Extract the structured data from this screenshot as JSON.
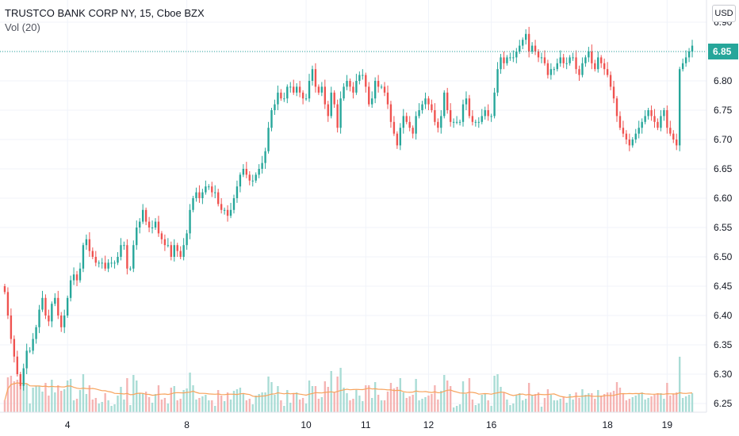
{
  "header": {
    "symbol_line": "TRUSTCO BANK CORP NY, 15, Cboe BZX",
    "indicator": "Vol (20)",
    "currency": "USD"
  },
  "last_price_label": "6.85",
  "colors": {
    "up": "#26a69a",
    "down": "#ef5350",
    "volume_up": "#a9dcd5",
    "volume_down": "#f5b4b3",
    "volume_ma": "#f7a35c",
    "grid": "#f0f3fa",
    "last_price_line": "#26a69a"
  },
  "chart_data": {
    "type": "candlestick",
    "title": "TRUSTCO BANK CORP NY, 15, Cboe BZX",
    "interval": "15",
    "exchange": "Cboe BZX",
    "y_axis": {
      "position": "right",
      "range": [
        6.235,
        6.905
      ],
      "ticks": [
        "6.25",
        "6.30",
        "6.35",
        "6.40",
        "6.45",
        "6.50",
        "6.55",
        "6.60",
        "6.65",
        "6.70",
        "6.75",
        "6.80",
        "6.85",
        "6.90"
      ]
    },
    "x_axis": {
      "ticks": [
        "4",
        "8",
        "10",
        "11",
        "12",
        "16",
        "18",
        "19"
      ],
      "tick_index": [
        20,
        58,
        96,
        115,
        135,
        155,
        192,
        211
      ]
    },
    "last_price": 6.85,
    "grid": true,
    "closes": [
      6.44,
      6.4,
      6.36,
      6.33,
      6.3,
      6.28,
      6.31,
      6.34,
      6.34,
      6.36,
      6.38,
      6.41,
      6.43,
      6.4,
      6.39,
      6.42,
      6.43,
      6.4,
      6.38,
      6.4,
      6.43,
      6.46,
      6.47,
      6.46,
      6.48,
      6.52,
      6.53,
      6.51,
      6.5,
      6.49,
      6.49,
      6.49,
      6.48,
      6.49,
      6.49,
      6.49,
      6.5,
      6.52,
      6.52,
      6.48,
      6.48,
      6.52,
      6.55,
      6.56,
      6.58,
      6.56,
      6.55,
      6.55,
      6.56,
      6.54,
      6.53,
      6.52,
      6.52,
      6.5,
      6.52,
      6.51,
      6.5,
      6.52,
      6.54,
      6.58,
      6.6,
      6.61,
      6.6,
      6.61,
      6.62,
      6.62,
      6.61,
      6.61,
      6.59,
      6.58,
      6.58,
      6.57,
      6.58,
      6.6,
      6.62,
      6.64,
      6.65,
      6.64,
      6.63,
      6.63,
      6.64,
      6.65,
      6.66,
      6.68,
      6.72,
      6.75,
      6.76,
      6.78,
      6.77,
      6.77,
      6.79,
      6.79,
      6.78,
      6.79,
      6.78,
      6.77,
      6.77,
      6.8,
      6.82,
      6.79,
      6.78,
      6.79,
      6.76,
      6.74,
      6.78,
      6.76,
      6.72,
      6.77,
      6.79,
      6.8,
      6.79,
      6.78,
      6.8,
      6.81,
      6.81,
      6.79,
      6.76,
      6.77,
      6.8,
      6.79,
      6.79,
      6.78,
      6.76,
      6.73,
      6.71,
      6.69,
      6.72,
      6.74,
      6.73,
      6.72,
      6.71,
      6.74,
      6.75,
      6.76,
      6.77,
      6.76,
      6.75,
      6.73,
      6.72,
      6.74,
      6.78,
      6.75,
      6.73,
      6.73,
      6.73,
      6.73,
      6.76,
      6.77,
      6.74,
      6.73,
      6.73,
      6.73,
      6.74,
      6.75,
      6.74,
      6.74,
      6.78,
      6.82,
      6.84,
      6.83,
      6.84,
      6.84,
      6.84,
      6.85,
      6.86,
      6.87,
      6.88,
      6.85,
      6.86,
      6.85,
      6.84,
      6.84,
      6.83,
      6.81,
      6.82,
      6.82,
      6.83,
      6.84,
      6.83,
      6.83,
      6.84,
      6.84,
      6.82,
      6.81,
      6.83,
      6.84,
      6.85,
      6.83,
      6.82,
      6.84,
      6.83,
      6.82,
      6.81,
      6.79,
      6.77,
      6.74,
      6.72,
      6.71,
      6.7,
      6.69,
      6.7,
      6.71,
      6.72,
      6.73,
      6.74,
      6.75,
      6.74,
      6.73,
      6.72,
      6.74,
      6.75,
      6.72,
      6.71,
      6.7,
      6.69,
      6.82,
      6.83,
      6.84,
      6.85,
      6.86
    ],
    "volume_panel": {
      "indicator": "Vol (20)",
      "ma_color": "#f7a35c"
    }
  }
}
